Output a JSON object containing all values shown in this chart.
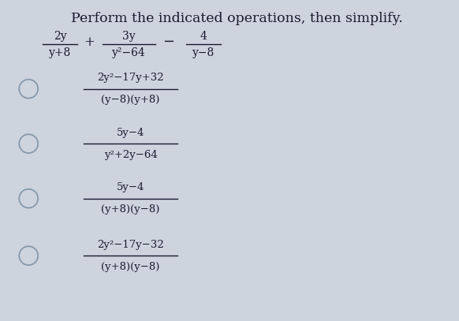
{
  "background_color": "#cdd4de",
  "title": "Perform the indicated operations, then simplify.",
  "title_fontsize": 12.5,
  "problem": {
    "num1": "2y",
    "den1": "y+8",
    "op1": "+",
    "num2": "3y",
    "den2": "y²−64",
    "op2": "−",
    "num3": "4",
    "den3": "y−8"
  },
  "choices": [
    {
      "numerator": "2y²−17y+32",
      "denominator": "(y−8)(y+8)"
    },
    {
      "numerator": "5y−4",
      "denominator": "y²+2y−64"
    },
    {
      "numerator": "5y−4",
      "denominator": "(y+8)(y−8)"
    },
    {
      "numerator": "2y²−17y−32",
      "denominator": "(y+8)(y−8)"
    }
  ],
  "text_color": "#1a1a2e",
  "circle_color": "#8899aa",
  "font_family": "serif",
  "fs_problem": 10.0,
  "fs_choice": 9.5,
  "fs_title": 12.5
}
